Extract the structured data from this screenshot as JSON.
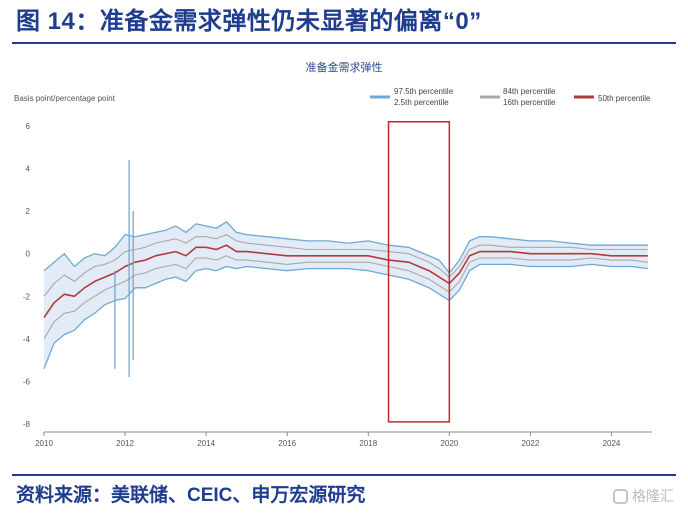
{
  "header": {
    "figure_title": "图 14：准备金需求弹性仍未显著的偏离“0”"
  },
  "footer": {
    "source_text": "资料来源：美联储、CEIC、申万宏源研究",
    "watermark_text": "格隆汇"
  },
  "colors": {
    "title_blue": "#1f3d8f",
    "band_outer": "#6fa8d6",
    "band_inner": "#a9a9a9",
    "median": "#b23a3a",
    "highlight_box": "#c0282d"
  },
  "chart_data": {
    "type": "line",
    "title": "准备金需求弹性",
    "ylabel": "Basis point/percentage point",
    "xlabel": "",
    "xlim": [
      2010,
      2025.0
    ],
    "ylim": [
      -8,
      6
    ],
    "x_ticks": [
      2010,
      2012,
      2014,
      2016,
      2018,
      2020,
      2022,
      2024
    ],
    "y_ticks": [
      6,
      4,
      2,
      0,
      -2,
      -4,
      -6,
      -8
    ],
    "grid": false,
    "legend_position": "top-right",
    "legend": [
      {
        "label_top": "97.5th percentile",
        "label_bottom": "2.5th percentile",
        "color": "#6fa8d6"
      },
      {
        "label_top": "84th percentile",
        "label_bottom": "16th percentile",
        "color": "#a9a9a9"
      },
      {
        "label_top": "50th percentile",
        "label_bottom": "",
        "color": "#b23a3a"
      }
    ],
    "x": [
      2010.0,
      2010.25,
      2010.5,
      2010.75,
      2011.0,
      2011.25,
      2011.5,
      2011.75,
      2012.0,
      2012.25,
      2012.5,
      2012.75,
      2013.0,
      2013.25,
      2013.5,
      2013.75,
      2014.0,
      2014.25,
      2014.5,
      2014.75,
      2015.0,
      2015.5,
      2016.0,
      2016.5,
      2017.0,
      2017.5,
      2018.0,
      2018.5,
      2019.0,
      2019.25,
      2019.5,
      2019.75,
      2020.0,
      2020.25,
      2020.5,
      2020.75,
      2021.0,
      2021.5,
      2022.0,
      2022.5,
      2023.0,
      2023.5,
      2024.0,
      2024.5,
      2024.9
    ],
    "series": [
      {
        "role": "upper_97_5",
        "values": [
          -0.8,
          -0.4,
          0.0,
          -0.6,
          -0.2,
          0.0,
          -0.1,
          0.3,
          0.9,
          0.8,
          0.9,
          1.0,
          1.1,
          1.3,
          1.0,
          1.4,
          1.3,
          1.2,
          1.5,
          1.0,
          0.9,
          0.8,
          0.7,
          0.6,
          0.6,
          0.5,
          0.6,
          0.4,
          0.3,
          0.1,
          -0.1,
          -0.3,
          -0.9,
          -0.3,
          0.6,
          0.8,
          0.8,
          0.7,
          0.6,
          0.6,
          0.5,
          0.4,
          0.4,
          0.4,
          0.4
        ]
      },
      {
        "role": "upper_84",
        "values": [
          -2.0,
          -1.4,
          -1.0,
          -1.3,
          -0.9,
          -0.6,
          -0.5,
          -0.3,
          0.1,
          0.2,
          0.3,
          0.5,
          0.6,
          0.7,
          0.5,
          0.8,
          0.8,
          0.7,
          0.9,
          0.6,
          0.5,
          0.4,
          0.3,
          0.2,
          0.2,
          0.2,
          0.2,
          0.1,
          0.0,
          -0.2,
          -0.4,
          -0.7,
          -1.1,
          -0.6,
          0.2,
          0.4,
          0.4,
          0.3,
          0.3,
          0.3,
          0.3,
          0.2,
          0.2,
          0.2,
          0.2
        ]
      },
      {
        "role": "median_50",
        "values": [
          -3.0,
          -2.3,
          -1.9,
          -2.0,
          -1.6,
          -1.3,
          -1.1,
          -0.9,
          -0.6,
          -0.4,
          -0.3,
          -0.1,
          0.0,
          0.1,
          -0.1,
          0.3,
          0.3,
          0.2,
          0.4,
          0.1,
          0.1,
          0.0,
          -0.1,
          -0.1,
          -0.1,
          -0.1,
          -0.1,
          -0.3,
          -0.4,
          -0.6,
          -0.8,
          -1.1,
          -1.4,
          -0.9,
          -0.1,
          0.1,
          0.1,
          0.1,
          0.0,
          0.0,
          0.0,
          0.0,
          -0.1,
          -0.1,
          -0.1
        ]
      },
      {
        "role": "lower_16",
        "values": [
          -4.0,
          -3.2,
          -2.8,
          -2.7,
          -2.3,
          -2.0,
          -1.7,
          -1.5,
          -1.3,
          -1.0,
          -0.9,
          -0.7,
          -0.6,
          -0.5,
          -0.7,
          -0.2,
          -0.2,
          -0.3,
          -0.1,
          -0.3,
          -0.3,
          -0.4,
          -0.5,
          -0.4,
          -0.4,
          -0.4,
          -0.4,
          -0.6,
          -0.8,
          -1.0,
          -1.2,
          -1.5,
          -1.8,
          -1.3,
          -0.4,
          -0.2,
          -0.2,
          -0.2,
          -0.3,
          -0.3,
          -0.3,
          -0.2,
          -0.3,
          -0.3,
          -0.4
        ]
      },
      {
        "role": "lower_2_5",
        "values": [
          -5.4,
          -4.2,
          -3.8,
          -3.6,
          -3.1,
          -2.8,
          -2.4,
          -2.2,
          -2.1,
          -1.6,
          -1.6,
          -1.4,
          -1.2,
          -1.1,
          -1.3,
          -0.8,
          -0.7,
          -0.8,
          -0.6,
          -0.7,
          -0.6,
          -0.7,
          -0.8,
          -0.7,
          -0.7,
          -0.7,
          -0.8,
          -1.0,
          -1.2,
          -1.4,
          -1.6,
          -1.9,
          -2.2,
          -1.7,
          -0.8,
          -0.5,
          -0.5,
          -0.5,
          -0.6,
          -0.6,
          -0.6,
          -0.5,
          -0.6,
          -0.6,
          -0.7
        ]
      }
    ],
    "spikes": [
      {
        "x": 2011.75,
        "low": -5.4,
        "high": -0.8
      },
      {
        "x": 2012.1,
        "low": -5.8,
        "high": 4.4
      },
      {
        "x": 2012.2,
        "low": -5.0,
        "high": 2.0
      }
    ],
    "highlight_range": {
      "x_start": 2018.5,
      "x_end": 2020.0,
      "y_top": 6.2,
      "y_bottom": -7.9
    }
  }
}
